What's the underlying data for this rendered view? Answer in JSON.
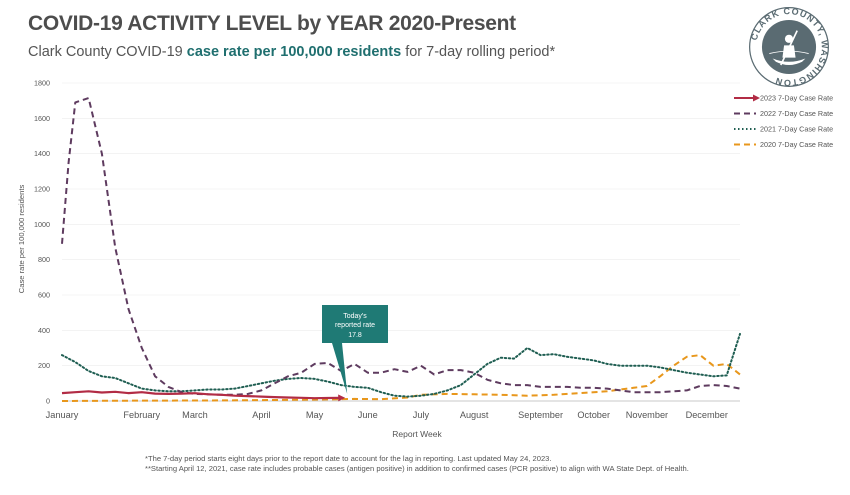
{
  "header": {
    "title": "COVID-19 ACTIVITY LEVEL by YEAR 2020-Present",
    "subtitle_pre": "Clark County COVID-19 ",
    "subtitle_highlight": "case rate per 100,000 residents",
    "subtitle_post": " for 7-day rolling period*"
  },
  "logo": {
    "text": "CLARK COUNTY, WASHINGTON",
    "icon": "clark-county-seal-icon",
    "color": "#5a6b72"
  },
  "callout": {
    "line1": "Today's",
    "line2": "reported rate",
    "line3": "17.8",
    "color": "#1f7a75"
  },
  "footnotes": {
    "note1": "*The 7-day period starts eight days prior to the report date to account for the lag in reporting.  Last updated  May 24, 2023.",
    "note2": "**Starting  April 12, 2021, case rate includes probable cases (antigen positive) in addition  to confirmed cases (PCR positive) to align with WA State Dept. of Health."
  },
  "chart_data": {
    "type": "line",
    "title": "COVID-19 ACTIVITY LEVEL by YEAR 2020-Present",
    "xlabel": "Report Week",
    "ylabel": "Case rate per 100,000 residents",
    "xlim": [
      1,
      52
    ],
    "ylim": [
      0,
      1800
    ],
    "yticks": [
      0,
      200,
      400,
      600,
      800,
      1000,
      1200,
      1400,
      1600,
      1800
    ],
    "month_labels": [
      {
        "label": "January",
        "week": 1
      },
      {
        "label": "February",
        "week": 7
      },
      {
        "label": "March",
        "week": 11
      },
      {
        "label": "April",
        "week": 16
      },
      {
        "label": "May",
        "week": 20
      },
      {
        "label": "June",
        "week": 24
      },
      {
        "label": "July",
        "week": 28
      },
      {
        "label": "August",
        "week": 32
      },
      {
        "label": "September",
        "week": 37
      },
      {
        "label": "October",
        "week": 41
      },
      {
        "label": "November",
        "week": 45
      },
      {
        "label": "December",
        "week": 49.5
      }
    ],
    "grid": true,
    "legend_position": "top-right",
    "series": [
      {
        "name": "2023 7-Day Case Rate",
        "color": "#b22c45",
        "style": "solid-arrow",
        "x": [
          1,
          2,
          3,
          4,
          5,
          6,
          7,
          8,
          9,
          10,
          11,
          12,
          13,
          14,
          15,
          16,
          17,
          18,
          19,
          20,
          21,
          22
        ],
        "y": [
          45,
          50,
          55,
          48,
          52,
          45,
          50,
          42,
          40,
          42,
          44,
          38,
          35,
          30,
          28,
          25,
          22,
          20,
          18,
          16,
          17,
          17.8
        ]
      },
      {
        "name": "2022 7-Day Case Rate",
        "color": "#5e3b5f",
        "style": "dashed",
        "x": [
          1,
          1.5,
          2,
          3,
          4,
          5,
          6,
          7,
          8,
          9,
          10,
          11,
          12,
          13,
          14,
          15,
          16,
          17,
          18,
          19,
          20,
          21,
          22,
          23,
          24,
          25,
          26,
          27,
          28,
          29,
          30,
          31,
          32,
          33,
          34,
          35,
          36,
          37,
          38,
          39,
          40,
          41,
          42,
          43,
          44,
          45,
          46,
          47,
          48,
          49,
          50,
          51,
          52
        ],
        "y": [
          890,
          1350,
          1690,
          1715,
          1400,
          870,
          520,
          300,
          140,
          80,
          50,
          40,
          38,
          35,
          35,
          40,
          60,
          100,
          140,
          160,
          210,
          215,
          170,
          210,
          160,
          160,
          180,
          165,
          200,
          150,
          175,
          175,
          160,
          120,
          100,
          90,
          90,
          80,
          80,
          80,
          75,
          75,
          70,
          60,
          50,
          50,
          50,
          55,
          60,
          85,
          90,
          85,
          70
        ]
      },
      {
        "name": "2021 7-Day Case Rate",
        "color": "#1f5e52",
        "style": "dotted",
        "x": [
          1,
          2,
          3,
          4,
          5,
          6,
          7,
          8,
          9,
          10,
          11,
          12,
          13,
          14,
          15,
          16,
          17,
          18,
          19,
          20,
          21,
          22,
          23,
          24,
          25,
          26,
          27,
          28,
          29,
          30,
          31,
          32,
          33,
          34,
          35,
          36,
          37,
          38,
          39,
          40,
          41,
          42,
          43,
          44,
          45,
          46,
          47,
          48,
          49,
          50,
          51,
          52
        ],
        "y": [
          260,
          220,
          170,
          140,
          130,
          100,
          70,
          60,
          55,
          55,
          60,
          65,
          65,
          70,
          85,
          100,
          115,
          125,
          130,
          125,
          110,
          90,
          80,
          75,
          50,
          30,
          25,
          30,
          40,
          60,
          90,
          150,
          210,
          245,
          240,
          300,
          260,
          265,
          250,
          240,
          230,
          210,
          200,
          200,
          200,
          190,
          175,
          160,
          150,
          140,
          145,
          380
        ]
      },
      {
        "name": "2020 7-Day Case Rate",
        "color": "#e8971c",
        "style": "dashed",
        "x": [
          1,
          4,
          8,
          12,
          16,
          20,
          22,
          23,
          25,
          27,
          28,
          30,
          32,
          34,
          36,
          38,
          40,
          42,
          43,
          44,
          45,
          46,
          47,
          48,
          49,
          50,
          51,
          52
        ],
        "y": [
          0,
          1,
          2,
          3,
          5,
          8,
          10,
          12,
          10,
          20,
          35,
          40,
          38,
          35,
          30,
          35,
          45,
          55,
          65,
          75,
          85,
          140,
          200,
          250,
          260,
          200,
          210,
          150
        ]
      }
    ]
  }
}
